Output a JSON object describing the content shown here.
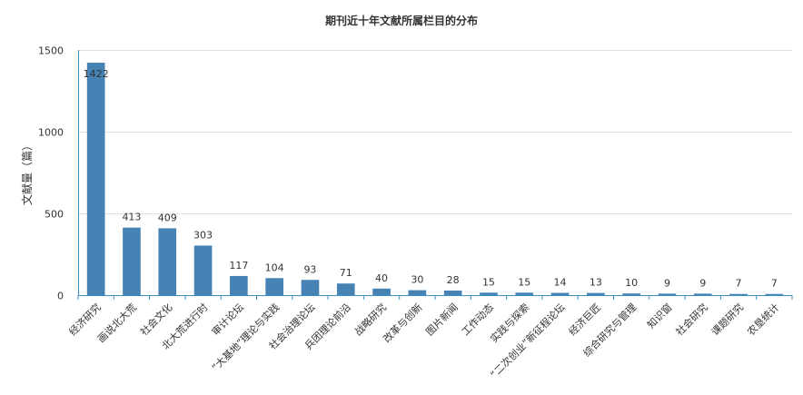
{
  "chart_data": {
    "type": "bar",
    "title": "期刊近十年文献所属栏目的分布",
    "xlabel": "",
    "ylabel": "文献量（篇）",
    "ylim": [
      0,
      1500
    ],
    "yticks": [
      0,
      500,
      1000,
      1500
    ],
    "grid": true,
    "color": "#4682b4",
    "categories": [
      "经济研究",
      "画说北大荒",
      "社会文化",
      "北大荒进行时",
      "审计论坛",
      "“大基地”理论与实践",
      "社会治理论坛",
      "兵团理论前沿",
      "战略研究",
      "改革与创新",
      "图片新闻",
      "工作动态",
      "实践与探索",
      "“二次创业”新征程论坛",
      "经济巨匠",
      "综合研究与管理",
      "知识窗",
      "社会研究",
      "课题研究",
      "农垦统计"
    ],
    "values": [
      1422,
      413,
      409,
      303,
      117,
      104,
      93,
      71,
      40,
      30,
      28,
      15,
      15,
      14,
      13,
      10,
      9,
      9,
      7,
      7
    ]
  }
}
